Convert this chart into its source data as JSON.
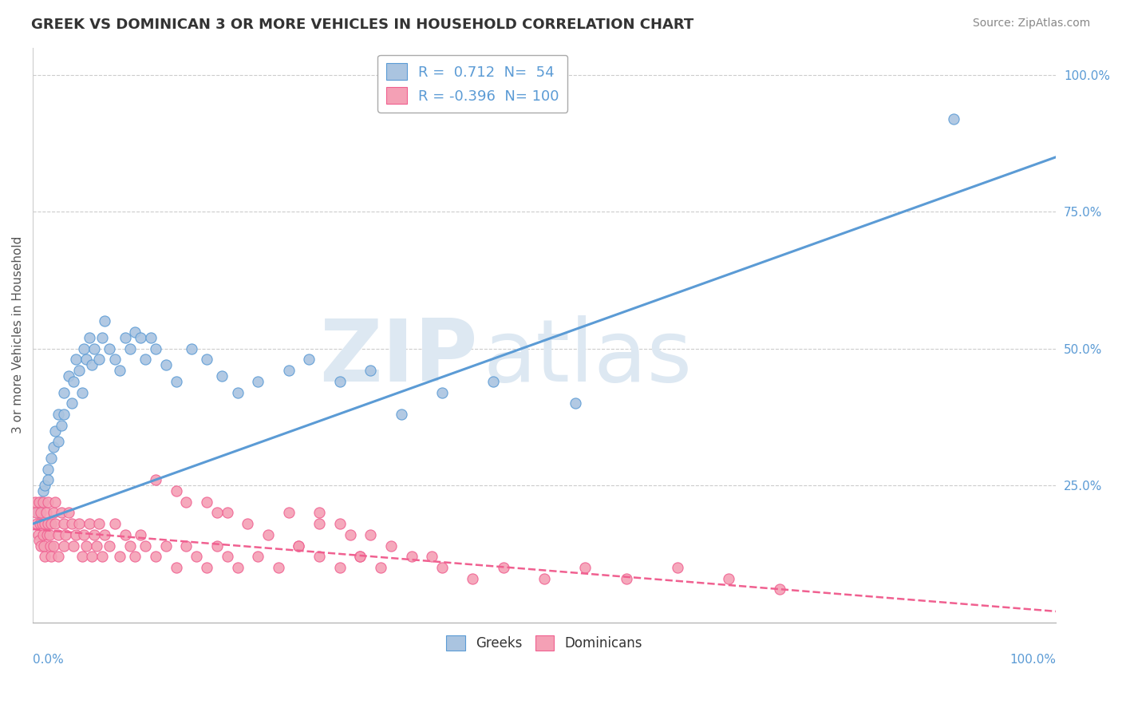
{
  "title": "GREEK VS DOMINICAN 3 OR MORE VEHICLES IN HOUSEHOLD CORRELATION CHART",
  "source": "Source: ZipAtlas.com",
  "ylabel": "3 or more Vehicles in Household",
  "yticks": [
    "25.0%",
    "50.0%",
    "75.0%",
    "100.0%"
  ],
  "ytick_values": [
    0.25,
    0.5,
    0.75,
    1.0
  ],
  "greek_R": 0.712,
  "greek_N": 54,
  "dominican_R": -0.396,
  "dominican_N": 100,
  "greek_color": "#aac4e0",
  "dominican_color": "#f4a0b5",
  "greek_line_color": "#5b9bd5",
  "dominican_line_color": "#f06090",
  "background_color": "#ffffff",
  "watermark_color": "#dde8f2",
  "greek_line_intercept": 0.18,
  "greek_line_slope": 0.67,
  "dominican_line_intercept": 0.17,
  "dominican_line_slope": -0.15,
  "greek_scatter_x": [
    0.005,
    0.008,
    0.01,
    0.012,
    0.015,
    0.015,
    0.018,
    0.02,
    0.022,
    0.025,
    0.025,
    0.028,
    0.03,
    0.03,
    0.035,
    0.038,
    0.04,
    0.042,
    0.045,
    0.048,
    0.05,
    0.052,
    0.055,
    0.058,
    0.06,
    0.065,
    0.068,
    0.07,
    0.075,
    0.08,
    0.085,
    0.09,
    0.095,
    0.1,
    0.105,
    0.11,
    0.115,
    0.12,
    0.13,
    0.14,
    0.155,
    0.17,
    0.185,
    0.2,
    0.22,
    0.25,
    0.27,
    0.3,
    0.33,
    0.36,
    0.4,
    0.45,
    0.53,
    0.9
  ],
  "greek_scatter_y": [
    0.2,
    0.22,
    0.24,
    0.25,
    0.28,
    0.26,
    0.3,
    0.32,
    0.35,
    0.38,
    0.33,
    0.36,
    0.42,
    0.38,
    0.45,
    0.4,
    0.44,
    0.48,
    0.46,
    0.42,
    0.5,
    0.48,
    0.52,
    0.47,
    0.5,
    0.48,
    0.52,
    0.55,
    0.5,
    0.48,
    0.46,
    0.52,
    0.5,
    0.53,
    0.52,
    0.48,
    0.52,
    0.5,
    0.47,
    0.44,
    0.5,
    0.48,
    0.45,
    0.42,
    0.44,
    0.46,
    0.48,
    0.44,
    0.46,
    0.38,
    0.42,
    0.44,
    0.4,
    0.92
  ],
  "dominican_scatter_x": [
    0.002,
    0.003,
    0.004,
    0.005,
    0.006,
    0.006,
    0.007,
    0.008,
    0.008,
    0.009,
    0.01,
    0.01,
    0.011,
    0.012,
    0.012,
    0.013,
    0.014,
    0.015,
    0.015,
    0.016,
    0.017,
    0.018,
    0.018,
    0.02,
    0.02,
    0.022,
    0.022,
    0.025,
    0.025,
    0.028,
    0.03,
    0.03,
    0.032,
    0.035,
    0.038,
    0.04,
    0.042,
    0.045,
    0.048,
    0.05,
    0.052,
    0.055,
    0.058,
    0.06,
    0.062,
    0.065,
    0.068,
    0.07,
    0.075,
    0.08,
    0.085,
    0.09,
    0.095,
    0.1,
    0.105,
    0.11,
    0.12,
    0.13,
    0.14,
    0.15,
    0.16,
    0.17,
    0.18,
    0.19,
    0.2,
    0.22,
    0.24,
    0.26,
    0.28,
    0.3,
    0.32,
    0.34,
    0.37,
    0.4,
    0.43,
    0.46,
    0.5,
    0.54,
    0.58,
    0.63,
    0.68,
    0.73,
    0.25,
    0.28,
    0.31,
    0.35,
    0.39,
    0.17,
    0.19,
    0.21,
    0.23,
    0.26,
    0.32,
    0.28,
    0.3,
    0.33,
    0.15,
    0.18,
    0.14,
    0.12
  ],
  "dominican_scatter_y": [
    0.22,
    0.2,
    0.18,
    0.16,
    0.22,
    0.15,
    0.18,
    0.2,
    0.14,
    0.18,
    0.16,
    0.22,
    0.14,
    0.18,
    0.12,
    0.2,
    0.16,
    0.22,
    0.18,
    0.16,
    0.14,
    0.18,
    0.12,
    0.2,
    0.14,
    0.18,
    0.22,
    0.16,
    0.12,
    0.2,
    0.18,
    0.14,
    0.16,
    0.2,
    0.18,
    0.14,
    0.16,
    0.18,
    0.12,
    0.16,
    0.14,
    0.18,
    0.12,
    0.16,
    0.14,
    0.18,
    0.12,
    0.16,
    0.14,
    0.18,
    0.12,
    0.16,
    0.14,
    0.12,
    0.16,
    0.14,
    0.12,
    0.14,
    0.1,
    0.14,
    0.12,
    0.1,
    0.14,
    0.12,
    0.1,
    0.12,
    0.1,
    0.14,
    0.12,
    0.1,
    0.12,
    0.1,
    0.12,
    0.1,
    0.08,
    0.1,
    0.08,
    0.1,
    0.08,
    0.1,
    0.08,
    0.06,
    0.2,
    0.18,
    0.16,
    0.14,
    0.12,
    0.22,
    0.2,
    0.18,
    0.16,
    0.14,
    0.12,
    0.2,
    0.18,
    0.16,
    0.22,
    0.2,
    0.24,
    0.26
  ]
}
